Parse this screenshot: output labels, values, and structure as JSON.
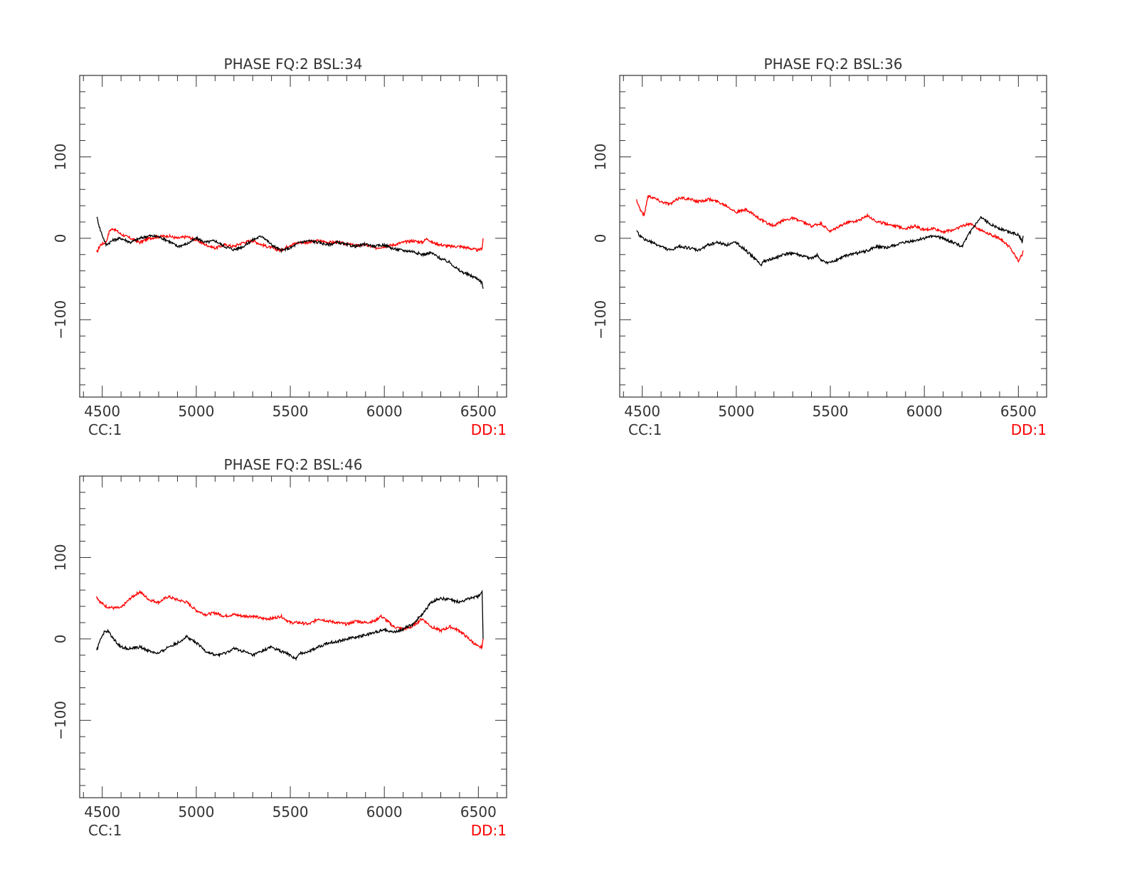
{
  "colors": {
    "background": "#ffffff",
    "axes": "#333333",
    "cc": "#000000",
    "dd": "#ff0000"
  },
  "chart_data": [
    {
      "type": "line",
      "title": "PHASE FQ:2 BSL:34",
      "xlim": [
        4380,
        6650
      ],
      "ylim": [
        -195,
        200
      ],
      "xticks": [
        4500,
        5000,
        5500,
        6000,
        6500
      ],
      "yticks": [
        -100,
        0,
        100
      ],
      "xtick_labels": [
        "4500",
        "5000",
        "5500",
        "6000",
        "6500"
      ],
      "ytick_labels": [
        "−100",
        "0",
        "100"
      ],
      "series": [
        {
          "name": "CC:1",
          "color": "#000000",
          "x": [
            4470,
            4490,
            4520,
            4560,
            4600,
            4650,
            4700,
            4750,
            4800,
            4850,
            4900,
            4950,
            5000,
            5050,
            5100,
            5150,
            5200,
            5250,
            5300,
            5350,
            5400,
            5450,
            5500,
            5550,
            5600,
            5650,
            5700,
            5750,
            5800,
            5850,
            5900,
            5950,
            6000,
            6050,
            6100,
            6150,
            6200,
            6250,
            6300,
            6350,
            6400,
            6450,
            6500,
            6520,
            6525
          ],
          "y": [
            27,
            10,
            -8,
            -2,
            0,
            -5,
            0,
            3,
            2,
            -3,
            -10,
            -7,
            0,
            -5,
            -3,
            -10,
            -14,
            -10,
            -2,
            3,
            -8,
            -15,
            -12,
            -5,
            -3,
            -5,
            -8,
            -5,
            -8,
            -10,
            -7,
            -10,
            -8,
            -13,
            -15,
            -16,
            -20,
            -18,
            -25,
            -30,
            -40,
            -45,
            -50,
            -55,
            -62
          ]
        },
        {
          "name": "DD:1",
          "color": "#ff0000",
          "x": [
            4470,
            4490,
            4520,
            4540,
            4560,
            4600,
            4650,
            4700,
            4750,
            4800,
            4850,
            4900,
            4950,
            5000,
            5050,
            5100,
            5150,
            5200,
            5250,
            5300,
            5350,
            5400,
            5450,
            5500,
            5550,
            5600,
            5650,
            5700,
            5750,
            5800,
            5850,
            5900,
            5950,
            6000,
            6050,
            6100,
            6150,
            6200,
            6230,
            6250,
            6300,
            6350,
            6400,
            6450,
            6500,
            6520,
            6525
          ],
          "y": [
            -18,
            -8,
            -5,
            10,
            12,
            5,
            0,
            -5,
            0,
            2,
            3,
            0,
            2,
            -2,
            -8,
            -12,
            -8,
            -10,
            -5,
            -3,
            -8,
            -12,
            -15,
            -8,
            -5,
            -5,
            -3,
            -5,
            -5,
            -7,
            -9,
            -8,
            -12,
            -10,
            -8,
            -5,
            -3,
            -5,
            0,
            -5,
            -8,
            -10,
            -10,
            -12,
            -15,
            -12,
            0
          ]
        }
      ],
      "legend": [
        "CC:1",
        "DD:1"
      ]
    },
    {
      "type": "line",
      "title": "PHASE FQ:2 BSL:36",
      "xlim": [
        4380,
        6650
      ],
      "ylim": [
        -195,
        200
      ],
      "xticks": [
        4500,
        5000,
        5500,
        6000,
        6500
      ],
      "yticks": [
        -100,
        0,
        100
      ],
      "xtick_labels": [
        "4500",
        "5000",
        "5500",
        "6000",
        "6500"
      ],
      "ytick_labels": [
        "−100",
        "0",
        "100"
      ],
      "series": [
        {
          "name": "CC:1",
          "color": "#000000",
          "x": [
            4470,
            4500,
            4550,
            4600,
            4650,
            4700,
            4750,
            4800,
            4850,
            4900,
            4950,
            5000,
            5050,
            5100,
            5130,
            5150,
            5200,
            5250,
            5300,
            5350,
            5400,
            5430,
            5450,
            5500,
            5550,
            5600,
            5650,
            5700,
            5750,
            5800,
            5850,
            5900,
            5950,
            6000,
            6050,
            6100,
            6150,
            6200,
            6250,
            6300,
            6350,
            6400,
            6450,
            6500,
            6520,
            6525
          ],
          "y": [
            8,
            0,
            -5,
            -10,
            -15,
            -10,
            -12,
            -15,
            -8,
            -5,
            -8,
            -5,
            -15,
            -25,
            -33,
            -28,
            -25,
            -20,
            -18,
            -22,
            -25,
            -20,
            -28,
            -30,
            -25,
            -20,
            -18,
            -15,
            -10,
            -12,
            -8,
            -5,
            -3,
            0,
            3,
            0,
            -5,
            -10,
            10,
            25,
            18,
            12,
            8,
            5,
            -5,
            3
          ]
        },
        {
          "name": "DD:1",
          "color": "#ff0000",
          "x": [
            4470,
            4490,
            4510,
            4530,
            4560,
            4600,
            4650,
            4700,
            4750,
            4800,
            4850,
            4900,
            4950,
            5000,
            5050,
            5100,
            5150,
            5200,
            5250,
            5300,
            5350,
            5400,
            5450,
            5500,
            5550,
            5600,
            5650,
            5700,
            5750,
            5800,
            5850,
            5900,
            5950,
            6000,
            6050,
            6100,
            6150,
            6200,
            6250,
            6300,
            6350,
            6400,
            6450,
            6500,
            6520,
            6525
          ],
          "y": [
            47,
            35,
            28,
            52,
            50,
            45,
            42,
            50,
            48,
            45,
            48,
            45,
            40,
            32,
            35,
            28,
            20,
            15,
            22,
            25,
            20,
            15,
            18,
            8,
            15,
            20,
            22,
            28,
            20,
            18,
            15,
            12,
            15,
            10,
            12,
            8,
            10,
            15,
            18,
            10,
            5,
            0,
            -10,
            -28,
            -20,
            -15
          ]
        }
      ],
      "legend": [
        "CC:1",
        "DD:1"
      ]
    },
    {
      "type": "line",
      "title": "PHASE FQ:2 BSL:46",
      "xlim": [
        4380,
        6650
      ],
      "ylim": [
        -195,
        200
      ],
      "xticks": [
        4500,
        5000,
        5500,
        6000,
        6500
      ],
      "yticks": [
        -100,
        0,
        100
      ],
      "xtick_labels": [
        "4500",
        "5000",
        "5500",
        "6000",
        "6500"
      ],
      "ytick_labels": [
        "−100",
        "0",
        "100"
      ],
      "series": [
        {
          "name": "CC:1",
          "color": "#000000",
          "x": [
            4470,
            4490,
            4510,
            4530,
            4560,
            4600,
            4650,
            4700,
            4750,
            4800,
            4850,
            4900,
            4950,
            5000,
            5050,
            5100,
            5150,
            5200,
            5250,
            5300,
            5350,
            5400,
            5450,
            5500,
            5530,
            5550,
            5600,
            5650,
            5700,
            5750,
            5800,
            5850,
            5900,
            5950,
            6000,
            6050,
            6100,
            6150,
            6200,
            6250,
            6300,
            6350,
            6400,
            6450,
            6500,
            6520,
            6525
          ],
          "y": [
            -15,
            0,
            8,
            10,
            0,
            -10,
            -12,
            -10,
            -15,
            -18,
            -10,
            -5,
            3,
            -5,
            -15,
            -20,
            -18,
            -12,
            -15,
            -20,
            -15,
            -10,
            -15,
            -20,
            -25,
            -18,
            -15,
            -10,
            -5,
            -3,
            0,
            2,
            5,
            8,
            12,
            8,
            12,
            18,
            30,
            45,
            50,
            48,
            45,
            50,
            52,
            60,
            0
          ]
        },
        {
          "name": "DD:1",
          "color": "#ff0000",
          "x": [
            4470,
            4490,
            4520,
            4560,
            4600,
            4650,
            4700,
            4750,
            4800,
            4850,
            4900,
            4950,
            5000,
            5050,
            5100,
            5150,
            5200,
            5250,
            5300,
            5350,
            5400,
            5450,
            5500,
            5550,
            5600,
            5650,
            5700,
            5750,
            5800,
            5850,
            5900,
            5950,
            5980,
            6000,
            6050,
            6100,
            6150,
            6200,
            6250,
            6300,
            6350,
            6400,
            6450,
            6500,
            6520,
            6525
          ],
          "y": [
            52,
            45,
            40,
            38,
            38,
            50,
            58,
            48,
            45,
            52,
            48,
            45,
            35,
            30,
            32,
            28,
            30,
            28,
            28,
            25,
            25,
            28,
            20,
            20,
            18,
            25,
            22,
            20,
            18,
            22,
            20,
            22,
            28,
            25,
            15,
            12,
            15,
            25,
            15,
            10,
            15,
            10,
            0,
            -10,
            -10,
            0
          ]
        }
      ],
      "legend": [
        "CC:1",
        "DD:1"
      ]
    }
  ]
}
